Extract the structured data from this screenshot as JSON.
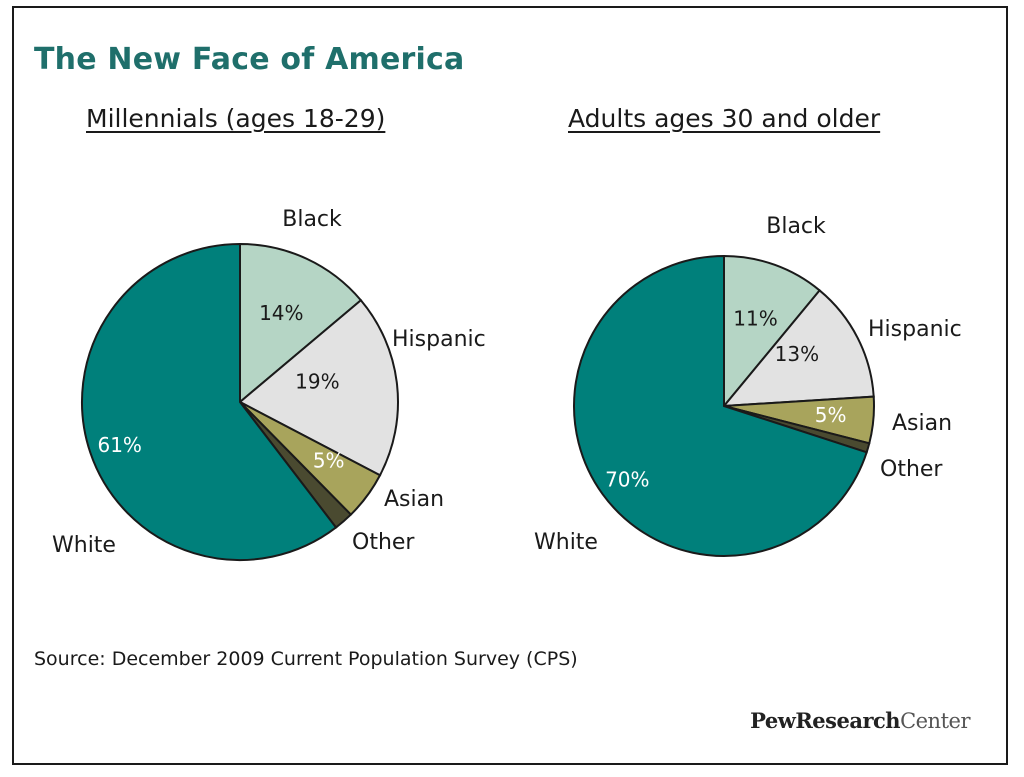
{
  "title": "The New Face of America",
  "source": "Source: December 2009 Current Population Survey (CPS)",
  "logo": {
    "part1": "PewResearch",
    "part2": "Center"
  },
  "colors": {
    "title": "#1f6f6b",
    "White": "#00807b",
    "Black": "#b5d5c5",
    "Hispanic": "#e2e2e2",
    "Asian": "#a8a45c",
    "Other": "#4a4a30"
  },
  "chart_data": [
    {
      "type": "pie",
      "title": "Millennials (ages 18-29)",
      "labels": [
        "Black",
        "Hispanic",
        "Asian",
        "Other",
        "White"
      ],
      "values": [
        14,
        19,
        5,
        2,
        61
      ],
      "value_labels": [
        "14%",
        "19%",
        "5%",
        "",
        "61%"
      ]
    },
    {
      "type": "pie",
      "title": "Adults ages 30 and older",
      "labels": [
        "Black",
        "Hispanic",
        "Asian",
        "Other",
        "White"
      ],
      "values": [
        11,
        13,
        5,
        1,
        70
      ],
      "value_labels": [
        "11%",
        "13%",
        "5%",
        "",
        "70%"
      ]
    }
  ]
}
